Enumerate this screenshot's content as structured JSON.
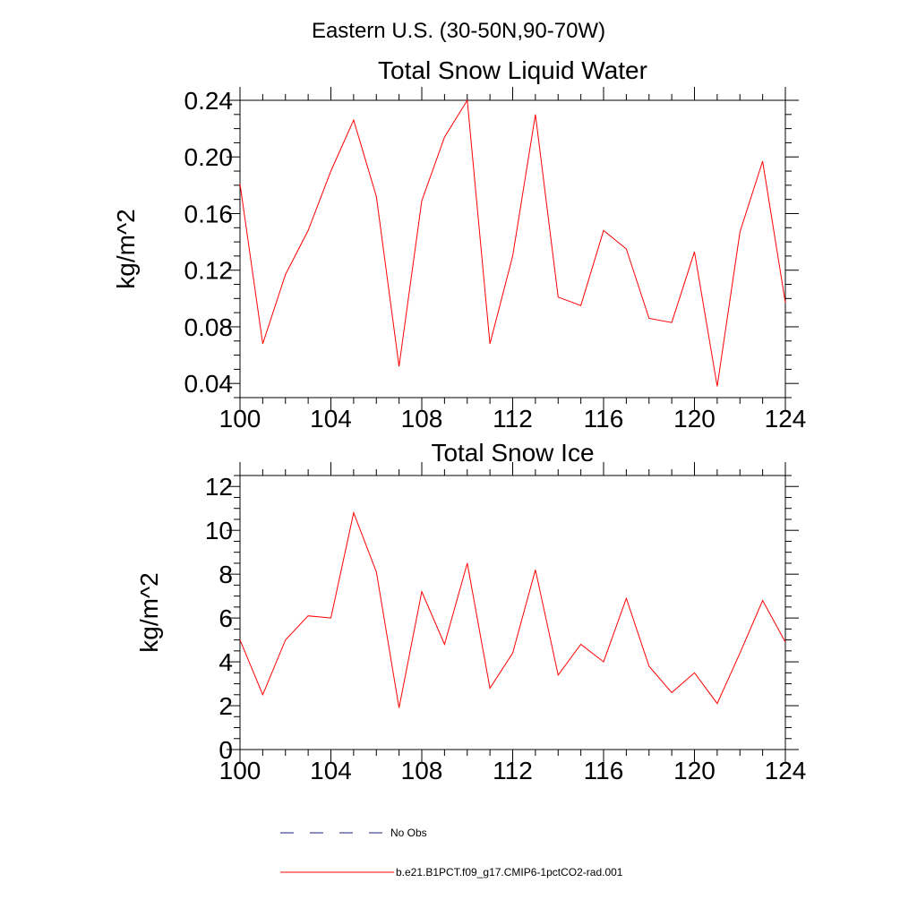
{
  "figure": {
    "main_title": "Eastern U.S. (30-50N,90-70W)"
  },
  "legend": {
    "placement": "bottom",
    "entries": [
      {
        "label": "No Obs",
        "style": "dashed",
        "color": "#1e1e78"
      },
      {
        "label": "b.e21.B1PCT.f09_g17.CMIP6-1pctCO2-rad.001",
        "style": "solid",
        "color": "#ff0000"
      }
    ]
  },
  "chart_data": [
    {
      "type": "line",
      "title": "Total Snow Liquid Water",
      "xlabel": "",
      "ylabel": "kg/m^2",
      "xlim": [
        100,
        124
      ],
      "ylim": [
        0.03,
        0.24
      ],
      "x_ticks": [
        "100",
        "104",
        "108",
        "112",
        "116",
        "120",
        "124"
      ],
      "y_ticks": [
        "0.04",
        "0.08",
        "0.12",
        "0.16",
        "0.20",
        "0.24"
      ],
      "grid": false,
      "x": [
        100,
        101,
        102,
        103,
        104,
        105,
        106,
        107,
        108,
        109,
        110,
        111,
        112,
        113,
        114,
        115,
        116,
        117,
        118,
        119,
        120,
        121,
        122,
        123,
        124
      ],
      "series": [
        {
          "color": "#ff0000",
          "values": [
            0.181,
            0.068,
            0.117,
            0.148,
            0.19,
            0.226,
            0.172,
            0.052,
            0.169,
            0.214,
            0.24,
            0.068,
            0.13,
            0.23,
            0.101,
            0.095,
            0.148,
            0.135,
            0.086,
            0.083,
            0.133,
            0.038,
            0.147,
            0.197,
            0.097
          ]
        }
      ]
    },
    {
      "type": "line",
      "title": "Total Snow Ice",
      "xlabel": "",
      "ylabel": "kg/m^2",
      "xlim": [
        100,
        124
      ],
      "ylim": [
        0,
        12.5
      ],
      "x_ticks": [
        "100",
        "104",
        "108",
        "112",
        "116",
        "120",
        "124"
      ],
      "y_ticks": [
        "0",
        "2",
        "4",
        "6",
        "8",
        "10",
        "12"
      ],
      "grid": false,
      "x": [
        100,
        101,
        102,
        103,
        104,
        105,
        106,
        107,
        108,
        109,
        110,
        111,
        112,
        113,
        114,
        115,
        116,
        117,
        118,
        119,
        120,
        121,
        122,
        123,
        124
      ],
      "series": [
        {
          "color": "#ff0000",
          "values": [
            5.0,
            2.5,
            5.0,
            6.1,
            6.0,
            10.8,
            8.1,
            1.9,
            7.2,
            4.8,
            8.5,
            2.8,
            4.4,
            8.2,
            3.4,
            4.8,
            4.0,
            6.9,
            3.8,
            2.6,
            3.5,
            2.1,
            4.4,
            6.8,
            4.9
          ]
        }
      ]
    }
  ]
}
